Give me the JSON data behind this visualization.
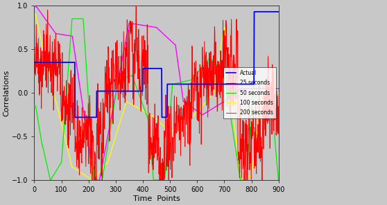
{
  "title": "",
  "xlabel": "Time  Points",
  "ylabel": "Correlations",
  "xlim": [
    0,
    900
  ],
  "ylim": [
    -1,
    1
  ],
  "xticks": [
    0,
    100,
    200,
    300,
    400,
    500,
    600,
    700,
    800,
    900
  ],
  "yticks": [
    -1,
    -0.5,
    0,
    0.5,
    1
  ],
  "colors": {
    "actual": "#0000FF",
    "w25": "#FF0000",
    "w50": "#00EE00",
    "w100": "#FFFF00",
    "w200": "#FF00FF"
  },
  "legend_labels": [
    "Actual",
    "25 seconds",
    "50 seconds",
    "100 seconds",
    "200 seconds"
  ],
  "axes_bg": "#D4D0C8",
  "fig_bg": "#D4D0C8",
  "figsize": [
    5.58,
    2.96
  ],
  "dpi": 100
}
